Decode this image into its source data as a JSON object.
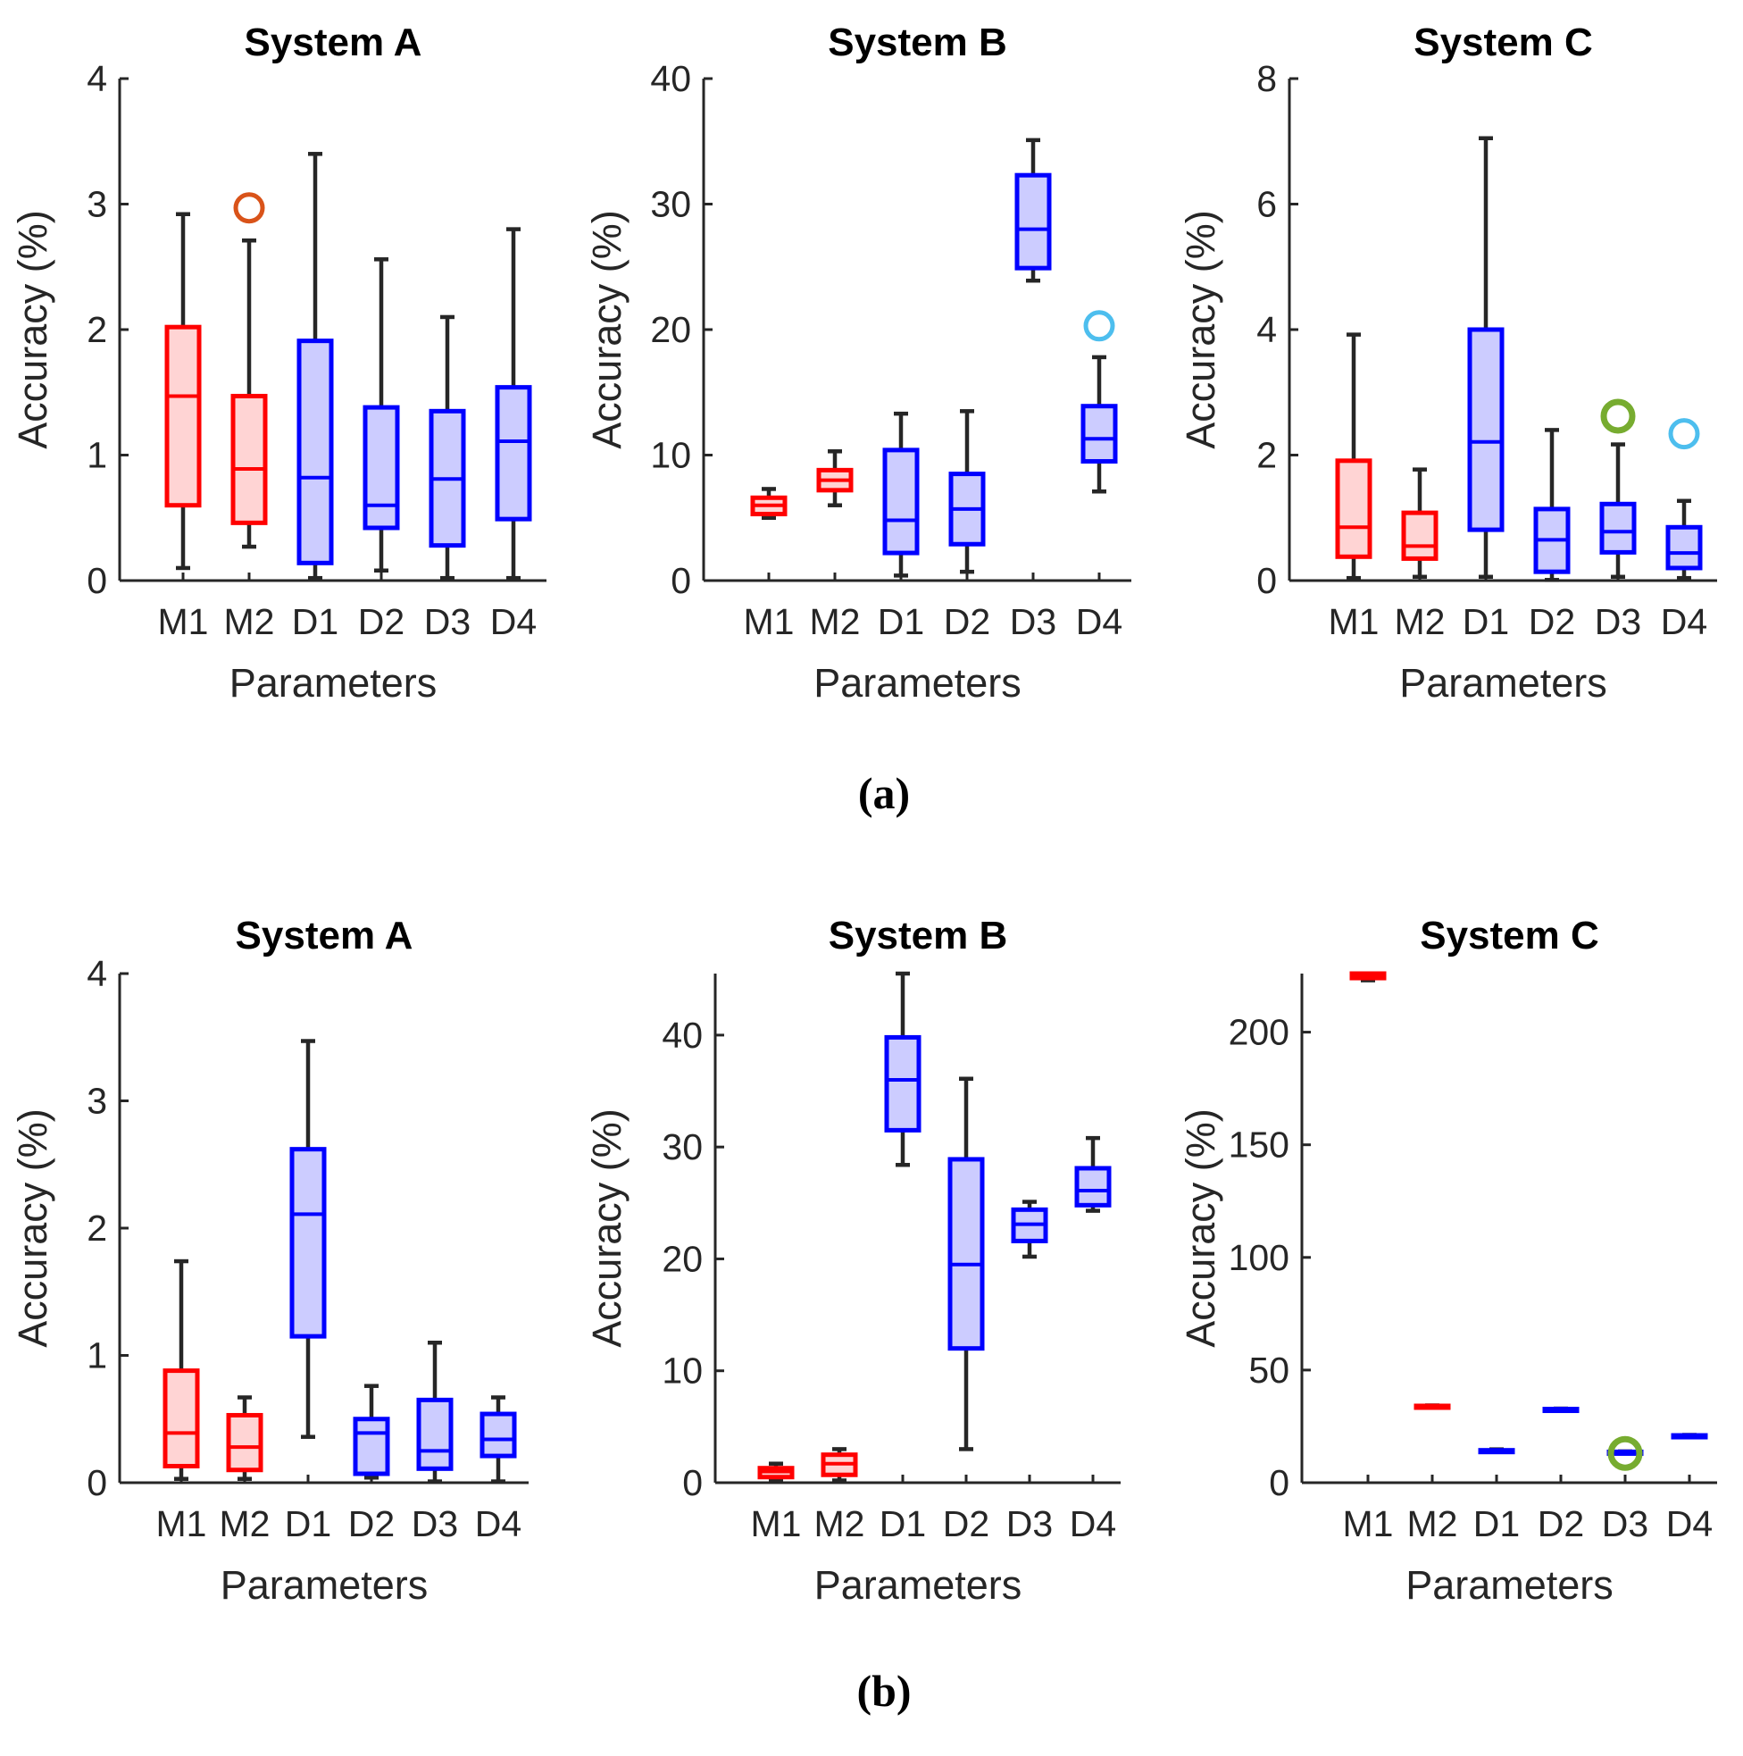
{
  "colors": {
    "m_stroke": "#ff0000",
    "m_fill": "#ffd4d4",
    "d_stroke": "#0000ff",
    "d_fill": "#ccccff",
    "whisker": "#262626"
  },
  "captions": [
    "(a)",
    "(b)"
  ],
  "chart_data": [
    {
      "type": "box",
      "panel": "a",
      "title": "System A",
      "xlabel": "Parameters",
      "ylabel": "Accuracy (%)",
      "ylim": [
        0,
        4
      ],
      "yticks": [
        0,
        1,
        2,
        3,
        4
      ],
      "categories": [
        "M1",
        "M2",
        "D1",
        "D2",
        "D3",
        "D4"
      ],
      "boxes": [
        {
          "min": 0.1,
          "q1": 0.6,
          "median": 1.47,
          "q3": 2.02,
          "max": 2.92
        },
        {
          "min": 0.27,
          "q1": 0.46,
          "median": 0.89,
          "q3": 1.47,
          "max": 2.71
        },
        {
          "min": 0.02,
          "q1": 0.14,
          "median": 0.82,
          "q3": 1.91,
          "max": 3.4
        },
        {
          "min": 0.08,
          "q1": 0.42,
          "median": 0.6,
          "q3": 1.38,
          "max": 2.56
        },
        {
          "min": 0.02,
          "q1": 0.28,
          "median": 0.81,
          "q3": 1.35,
          "max": 2.1
        },
        {
          "min": 0.02,
          "q1": 0.49,
          "median": 1.11,
          "q3": 1.54,
          "max": 2.8
        }
      ],
      "outliers": [
        {
          "category": "M2",
          "value": 2.97,
          "color": "#d95319",
          "bold": false
        }
      ]
    },
    {
      "type": "box",
      "panel": "a",
      "title": "System B",
      "xlabel": "Parameters",
      "ylabel": "Accuracy (%)",
      "ylim": [
        0,
        40
      ],
      "yticks": [
        0,
        10,
        20,
        30,
        40
      ],
      "categories": [
        "M1",
        "M2",
        "D1",
        "D2",
        "D3",
        "D4"
      ],
      "boxes": [
        {
          "min": 5.0,
          "q1": 5.3,
          "median": 6.0,
          "q3": 6.6,
          "max": 7.3
        },
        {
          "min": 6.0,
          "q1": 7.2,
          "median": 8.0,
          "q3": 8.8,
          "max": 10.3
        },
        {
          "min": 0.4,
          "q1": 2.2,
          "median": 4.8,
          "q3": 10.4,
          "max": 13.3
        },
        {
          "min": 0.7,
          "q1": 2.9,
          "median": 5.7,
          "q3": 8.5,
          "max": 13.5
        },
        {
          "min": 23.9,
          "q1": 24.9,
          "median": 28.0,
          "q3": 32.3,
          "max": 35.1
        },
        {
          "min": 7.1,
          "q1": 9.5,
          "median": 11.3,
          "q3": 13.9,
          "max": 17.8
        }
      ],
      "outliers": [
        {
          "category": "D4",
          "value": 20.3,
          "color": "#4dbeee",
          "bold": false
        }
      ]
    },
    {
      "type": "box",
      "panel": "a",
      "title": "System C",
      "xlabel": "Parameters",
      "ylabel": "Accuracy (%)",
      "ylim": [
        0,
        8
      ],
      "yticks": [
        0,
        2,
        4,
        6,
        8
      ],
      "categories": [
        "M1",
        "M2",
        "D1",
        "D2",
        "D3",
        "D4"
      ],
      "boxes": [
        {
          "min": 0.04,
          "q1": 0.38,
          "median": 0.85,
          "q3": 1.91,
          "max": 3.92
        },
        {
          "min": 0.06,
          "q1": 0.35,
          "median": 0.55,
          "q3": 1.08,
          "max": 1.77
        },
        {
          "min": 0.06,
          "q1": 0.81,
          "median": 2.21,
          "q3": 4.0,
          "max": 7.05
        },
        {
          "min": 0.01,
          "q1": 0.14,
          "median": 0.65,
          "q3": 1.14,
          "max": 2.4
        },
        {
          "min": 0.06,
          "q1": 0.45,
          "median": 0.78,
          "q3": 1.22,
          "max": 2.17
        },
        {
          "min": 0.04,
          "q1": 0.2,
          "median": 0.44,
          "q3": 0.85,
          "max": 1.27
        }
      ],
      "outliers": [
        {
          "category": "D3",
          "value": 2.62,
          "color": "#77ac30",
          "bold": true
        },
        {
          "category": "D4",
          "value": 2.34,
          "color": "#4dbeee",
          "bold": false
        }
      ]
    },
    {
      "type": "box",
      "panel": "b",
      "title": "System A",
      "xlabel": "Parameters",
      "ylabel": "Accuracy (%)",
      "ylim": [
        0,
        4
      ],
      "yticks": [
        0,
        1,
        2,
        3,
        4
      ],
      "categories": [
        "M1",
        "M2",
        "D1",
        "D2",
        "D3",
        "D4"
      ],
      "boxes": [
        {
          "min": 0.03,
          "q1": 0.13,
          "median": 0.39,
          "q3": 0.88,
          "max": 1.74
        },
        {
          "min": 0.03,
          "q1": 0.1,
          "median": 0.28,
          "q3": 0.53,
          "max": 0.67
        },
        {
          "min": 0.36,
          "q1": 1.15,
          "median": 2.11,
          "q3": 2.62,
          "max": 3.47
        },
        {
          "min": 0.04,
          "q1": 0.07,
          "median": 0.39,
          "q3": 0.5,
          "max": 0.76
        },
        {
          "min": 0.01,
          "q1": 0.11,
          "median": 0.25,
          "q3": 0.65,
          "max": 1.1
        },
        {
          "min": 0.01,
          "q1": 0.21,
          "median": 0.34,
          "q3": 0.54,
          "max": 0.67
        }
      ],
      "outliers": []
    },
    {
      "type": "box",
      "panel": "b",
      "title": "System B",
      "xlabel": "Parameters",
      "ylabel": "Accuracy (%)",
      "ylim": [
        0,
        45.5
      ],
      "yticks": [
        0,
        10,
        20,
        30,
        40
      ],
      "categories": [
        "M1",
        "M2",
        "D1",
        "D2",
        "D3",
        "D4"
      ],
      "boxes": [
        {
          "min": 0.2,
          "q1": 0.5,
          "median": 1.0,
          "q3": 1.3,
          "max": 1.7
        },
        {
          "min": 0.2,
          "q1": 0.7,
          "median": 1.7,
          "q3": 2.5,
          "max": 3.0
        },
        {
          "min": 28.4,
          "q1": 31.5,
          "median": 36.0,
          "q3": 39.8,
          "max": 45.5
        },
        {
          "min": 3.0,
          "q1": 12.0,
          "median": 19.5,
          "q3": 28.9,
          "max": 36.1
        },
        {
          "min": 20.2,
          "q1": 21.6,
          "median": 23.1,
          "q3": 24.4,
          "max": 25.1
        },
        {
          "min": 24.3,
          "q1": 24.8,
          "median": 26.1,
          "q3": 28.1,
          "max": 30.8
        }
      ],
      "outliers": []
    },
    {
      "type": "box",
      "panel": "b",
      "title": "System C",
      "xlabel": "Parameters",
      "ylabel": "Accuracy (%)",
      "ylim": [
        0,
        226
      ],
      "yticks": [
        0,
        50,
        100,
        150,
        200
      ],
      "categories": [
        "M1",
        "M2",
        "D1",
        "D2",
        "D3",
        "D4"
      ],
      "boxes": [
        {
          "min": 223,
          "q1": 224,
          "median": 225,
          "q3": 226,
          "max": 226
        },
        {
          "min": 33.2,
          "q1": 33.5,
          "median": 33.8,
          "q3": 34.1,
          "max": 34.3
        },
        {
          "min": 13.6,
          "q1": 13.9,
          "median": 14.1,
          "q3": 14.4,
          "max": 14.8
        },
        {
          "min": 32.1,
          "q1": 32.3,
          "median": 32.5,
          "q3": 32.7,
          "max": 32.9
        },
        {
          "min": 13.1,
          "q1": 13.3,
          "median": 13.5,
          "q3": 13.7,
          "max": 13.9
        },
        {
          "min": 20.4,
          "q1": 20.6,
          "median": 20.8,
          "q3": 21.0,
          "max": 21.2
        }
      ],
      "outliers": [
        {
          "category": "D3",
          "value": 13.0,
          "color": "#77ac30",
          "bold": true
        }
      ]
    }
  ]
}
